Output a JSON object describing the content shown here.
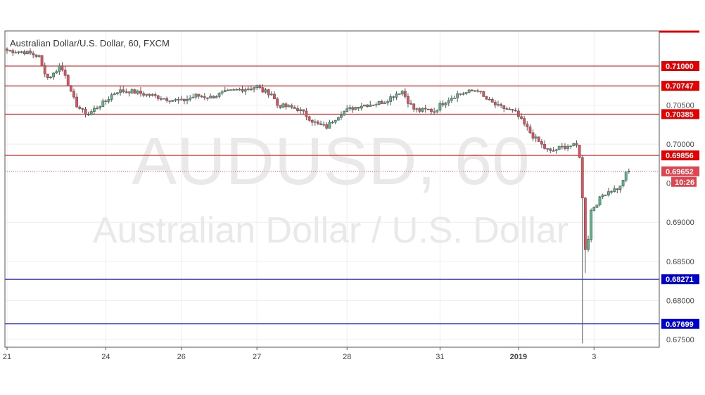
{
  "header": {
    "symbol_title": "Australian Dollar/U.S. Dollar, 60, FXCM"
  },
  "watermark": {
    "ticker": "AUDUSD, 60",
    "name": "Australian Dollar / U.S. Dollar"
  },
  "colors": {
    "up": "#53b987",
    "down": "#eb4d5c",
    "resistance": "#e50000",
    "support": "#0000cc",
    "price_line": "#e0454f",
    "grid": "#eeeeee"
  },
  "chart_data": {
    "type": "candlestick",
    "title": "Australian Dollar/U.S. Dollar, 60, FXCM",
    "xlabel": "",
    "ylabel": "",
    "ylim": [
      0.674,
      0.7145
    ],
    "x_ticks": [
      {
        "label": "21",
        "bar": 0
      },
      {
        "label": "24",
        "bar": 34
      },
      {
        "label": "26",
        "bar": 60
      },
      {
        "label": "27",
        "bar": 86
      },
      {
        "label": "28",
        "bar": 117
      },
      {
        "label": "31",
        "bar": 149
      },
      {
        "label": "2019",
        "bar": 176
      },
      {
        "label": "3",
        "bar": 202
      }
    ],
    "y_ticks": [
      "0.70500",
      "0.70000",
      "0.69000",
      "0.68500",
      "0.68000",
      "0.67500"
    ],
    "resistance_levels": [
      {
        "label": "0.71000",
        "value": 0.71
      },
      {
        "label": "0.70747",
        "value": 0.70747
      },
      {
        "label": "0.70385",
        "value": 0.70385
      },
      {
        "label": "0.69856",
        "value": 0.69856
      }
    ],
    "support_levels": [
      {
        "label": "0.68271",
        "value": 0.68271
      },
      {
        "label": "0.67699",
        "value": 0.67699
      }
    ],
    "current_price": {
      "label": "0.69652",
      "value": 0.69652
    },
    "countdown": "10:26",
    "bar_count": 215,
    "anchors": [
      [
        0,
        0.712
      ],
      [
        6,
        0.7118
      ],
      [
        9,
        0.7115
      ],
      [
        11,
        0.7112
      ],
      [
        12,
        0.71
      ],
      [
        14,
        0.7085
      ],
      [
        16,
        0.709
      ],
      [
        18,
        0.71
      ],
      [
        20,
        0.709
      ],
      [
        22,
        0.7065
      ],
      [
        24,
        0.705
      ],
      [
        26,
        0.7042
      ],
      [
        28,
        0.7038
      ],
      [
        30,
        0.7045
      ],
      [
        32,
        0.705
      ],
      [
        34,
        0.7055
      ],
      [
        36,
        0.7063
      ],
      [
        38,
        0.7068
      ],
      [
        42,
        0.7068
      ],
      [
        46,
        0.7065
      ],
      [
        50,
        0.7062
      ],
      [
        55,
        0.7058
      ],
      [
        60,
        0.7055
      ],
      [
        65,
        0.7062
      ],
      [
        70,
        0.706
      ],
      [
        75,
        0.7066
      ],
      [
        80,
        0.707
      ],
      [
        84,
        0.7072
      ],
      [
        86,
        0.7074
      ],
      [
        88,
        0.7068
      ],
      [
        91,
        0.7065
      ],
      [
        93,
        0.705
      ],
      [
        96,
        0.7048
      ],
      [
        100,
        0.7045
      ],
      [
        102,
        0.704
      ],
      [
        105,
        0.703
      ],
      [
        107,
        0.7025
      ],
      [
        110,
        0.7022
      ],
      [
        112,
        0.703
      ],
      [
        115,
        0.704
      ],
      [
        118,
        0.7045
      ],
      [
        122,
        0.705
      ],
      [
        127,
        0.7052
      ],
      [
        130,
        0.7055
      ],
      [
        132,
        0.706
      ],
      [
        134,
        0.7065
      ],
      [
        136,
        0.7068
      ],
      [
        138,
        0.7055
      ],
      [
        140,
        0.7045
      ],
      [
        142,
        0.7043
      ],
      [
        145,
        0.7044
      ],
      [
        147,
        0.7042
      ],
      [
        149,
        0.705
      ],
      [
        152,
        0.7058
      ],
      [
        155,
        0.7064
      ],
      [
        158,
        0.7066
      ],
      [
        160,
        0.7068
      ],
      [
        162,
        0.707
      ],
      [
        164,
        0.706
      ],
      [
        166,
        0.7055
      ],
      [
        169,
        0.7048
      ],
      [
        172,
        0.7045
      ],
      [
        175,
        0.704
      ],
      [
        177,
        0.703
      ],
      [
        179,
        0.702
      ],
      [
        181,
        0.701
      ],
      [
        183,
        0.7003
      ],
      [
        185,
        0.6995
      ],
      [
        187,
        0.699
      ],
      [
        190,
        0.6995
      ],
      [
        193,
        0.6998
      ],
      [
        196,
        0.6998
      ],
      [
        197,
        0.6985
      ],
      [
        198,
        0.693
      ],
      [
        199,
        0.6867
      ],
      [
        200,
        0.688
      ],
      [
        201,
        0.6915
      ],
      [
        203,
        0.6925
      ],
      [
        205,
        0.6935
      ],
      [
        207,
        0.694
      ],
      [
        209,
        0.6942
      ],
      [
        211,
        0.6945
      ],
      [
        212,
        0.6955
      ],
      [
        213,
        0.6962
      ],
      [
        214,
        0.6965
      ]
    ],
    "spikes": [
      {
        "bar": 198,
        "low": 0.6745
      },
      {
        "bar": 199,
        "low": 0.6835
      }
    ]
  }
}
